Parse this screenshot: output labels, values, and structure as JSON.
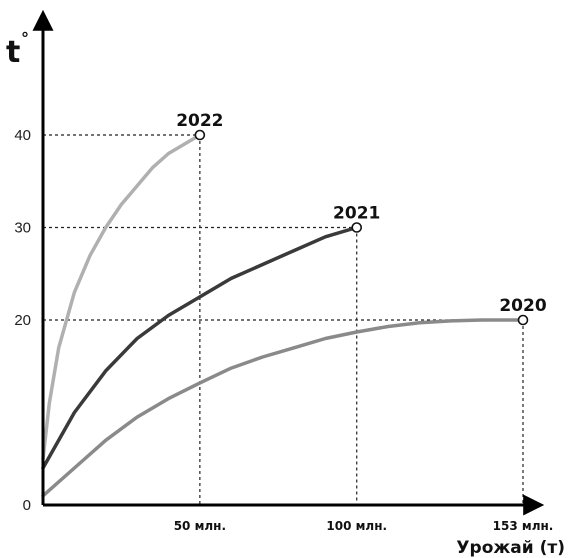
{
  "chart_data": {
    "type": "line",
    "ylabel": "t",
    "ylabel_superscript": "°",
    "xlabel": "Урожай (т)",
    "y_ticks": [
      {
        "value": 0,
        "label": "0"
      },
      {
        "value": 20,
        "label": "20"
      },
      {
        "value": 30,
        "label": "30"
      },
      {
        "value": 40,
        "label": "40"
      }
    ],
    "x_ticks": [
      {
        "value": 50,
        "label": "50 млн."
      },
      {
        "value": 100,
        "label": "100 млн."
      },
      {
        "value": 153,
        "label": "153 млн."
      }
    ],
    "ylim": [
      0,
      70
    ],
    "xlim": [
      0,
      165
    ],
    "grid": false,
    "guide_lines": true,
    "series": [
      {
        "name": "2022",
        "color": "#b0b0b0",
        "x": [
          0,
          2,
          5,
          10,
          15,
          20,
          25,
          30,
          35,
          40,
          45,
          50
        ],
        "y": [
          5,
          11,
          17,
          23,
          27,
          30,
          32.5,
          34.5,
          36.5,
          38,
          39,
          40
        ]
      },
      {
        "name": "2021",
        "color": "#3a3a3a",
        "x": [
          0,
          5,
          10,
          20,
          30,
          40,
          50,
          60,
          70,
          80,
          90,
          100
        ],
        "y": [
          4,
          7,
          10,
          14.5,
          18,
          20.5,
          22.5,
          24.5,
          26,
          27.5,
          29,
          30
        ]
      },
      {
        "name": "2020",
        "color": "#8a8a8a",
        "x": [
          0,
          10,
          20,
          30,
          40,
          50,
          60,
          70,
          80,
          90,
          100,
          110,
          120,
          130,
          140,
          153
        ],
        "y": [
          1,
          4,
          7,
          9.5,
          11.5,
          13.2,
          14.8,
          16,
          17,
          18,
          18.7,
          19.3,
          19.7,
          19.9,
          20,
          20
        ]
      }
    ]
  }
}
